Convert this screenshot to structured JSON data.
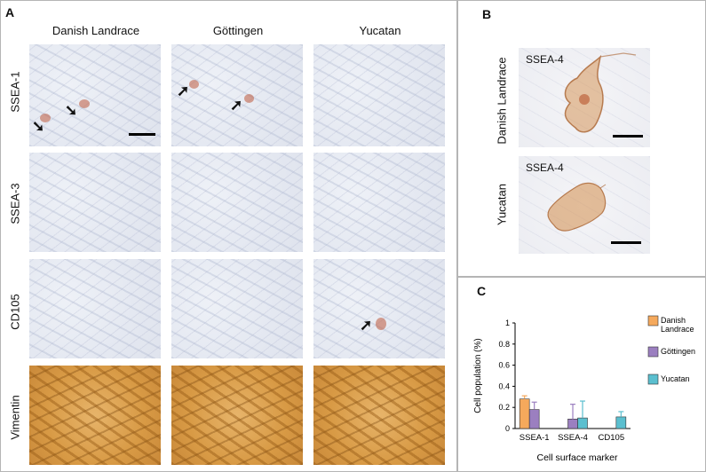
{
  "panel_a": {
    "letter": "A",
    "columns": [
      "Danish Landrace",
      "Göttingen",
      "Yucatan"
    ],
    "rows": [
      "SSEA-1",
      "SSEA-3",
      "CD105",
      "Vimentin"
    ]
  },
  "panel_b": {
    "letter": "B",
    "rows": [
      "Danish Landrace",
      "Yucatan"
    ],
    "image_label": "SSEA-4"
  },
  "panel_c": {
    "letter": "C"
  },
  "colors": {
    "danish": "#f5a95c",
    "gottingen": "#9b7fc0",
    "yucatan": "#5bbfcf"
  },
  "chart_data": {
    "type": "bar",
    "categories": [
      "SSEA-1",
      "SSEA-4",
      "CD105"
    ],
    "series": [
      {
        "name": "Danish Landrace",
        "values": [
          0.28,
          0,
          0
        ],
        "errors": [
          0.03,
          0,
          0
        ]
      },
      {
        "name": "Göttingen",
        "values": [
          0.18,
          0.09,
          0
        ],
        "errors": [
          0.07,
          0.14,
          0
        ]
      },
      {
        "name": "Yucatan",
        "values": [
          0,
          0.1,
          0.11
        ],
        "errors": [
          0,
          0.16,
          0.05
        ]
      }
    ],
    "xlabel": "Cell surface marker",
    "ylabel": "Cell population (%)",
    "ylim": [
      0,
      1
    ],
    "yticks": [
      0,
      0.2,
      0.4,
      0.6,
      0.8,
      1
    ],
    "ytick_labels": [
      "0",
      "0.2",
      "0.4",
      "0.6",
      "0.8",
      "1"
    ],
    "legend": {
      "placement": "right",
      "labels": [
        "Danish Landrace",
        "Göttingen",
        "Yucatan"
      ]
    }
  }
}
